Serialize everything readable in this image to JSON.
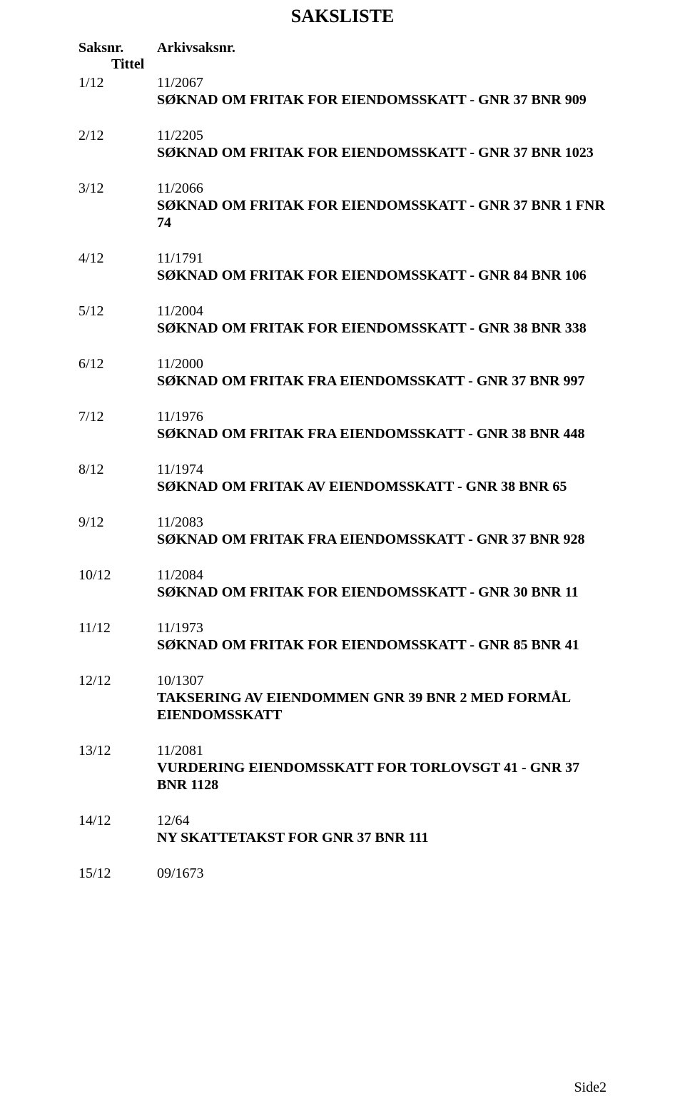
{
  "title": "SAKSLISTE",
  "header": {
    "col1": "Saksnr.",
    "col2": "Arkivsaksnr.",
    "tittel": "Tittel"
  },
  "items": [
    {
      "num": "1/12",
      "arkiv": "11/2067",
      "title": "SØKNAD OM FRITAK FOR EIENDOMSSKATT - GNR 37 BNR 909"
    },
    {
      "num": "2/12",
      "arkiv": "11/2205",
      "title": "SØKNAD OM FRITAK FOR EIENDOMSSKATT - GNR 37 BNR 1023"
    },
    {
      "num": "3/12",
      "arkiv": "11/2066",
      "title": "SØKNAD OM FRITAK FOR EIENDOMSSKATT - GNR 37 BNR 1 FNR 74"
    },
    {
      "num": "4/12",
      "arkiv": "11/1791",
      "title": "SØKNAD OM FRITAK FOR EIENDOMSSKATT - GNR 84 BNR 106"
    },
    {
      "num": "5/12",
      "arkiv": "11/2004",
      "title": "SØKNAD OM FRITAK FOR EIENDOMSSKATT - GNR 38 BNR 338"
    },
    {
      "num": "6/12",
      "arkiv": "11/2000",
      "title": "SØKNAD OM FRITAK FRA EIENDOMSSKATT - GNR 37 BNR 997"
    },
    {
      "num": "7/12",
      "arkiv": "11/1976",
      "title": "SØKNAD OM FRITAK FRA EIENDOMSSKATT - GNR 38 BNR 448"
    },
    {
      "num": "8/12",
      "arkiv": "11/1974",
      "title": "SØKNAD OM FRITAK AV EIENDOMSSKATT - GNR 38 BNR 65"
    },
    {
      "num": "9/12",
      "arkiv": "11/2083",
      "title": "SØKNAD OM FRITAK FRA EIENDOMSSKATT - GNR 37 BNR 928"
    },
    {
      "num": "10/12",
      "arkiv": "11/2084",
      "title": "SØKNAD OM FRITAK FOR EIENDOMSSKATT - GNR 30 BNR 11"
    },
    {
      "num": "11/12",
      "arkiv": "11/1973",
      "title": "SØKNAD OM FRITAK FOR EIENDOMSSKATT - GNR 85 BNR 41"
    },
    {
      "num": "12/12",
      "arkiv": "10/1307",
      "title": "TAKSERING AV EIENDOMMEN GNR 39 BNR 2 MED FORMÅL EIENDOMSSKATT"
    },
    {
      "num": "13/12",
      "arkiv": "11/2081",
      "title": "VURDERING EIENDOMSSKATT FOR TORLOVSGT 41 - GNR 37 BNR 1128"
    },
    {
      "num": "14/12",
      "arkiv": "12/64",
      "title": "NY SKATTETAKST FOR GNR 37 BNR 111"
    },
    {
      "num": "15/12",
      "arkiv": "09/1673",
      "title": ""
    }
  ],
  "footer": "Side2",
  "style": {
    "font_family": "Times New Roman",
    "title_fontsize": 26,
    "body_fontsize": 20,
    "text_color": "#000000",
    "background_color": "#ffffff"
  }
}
